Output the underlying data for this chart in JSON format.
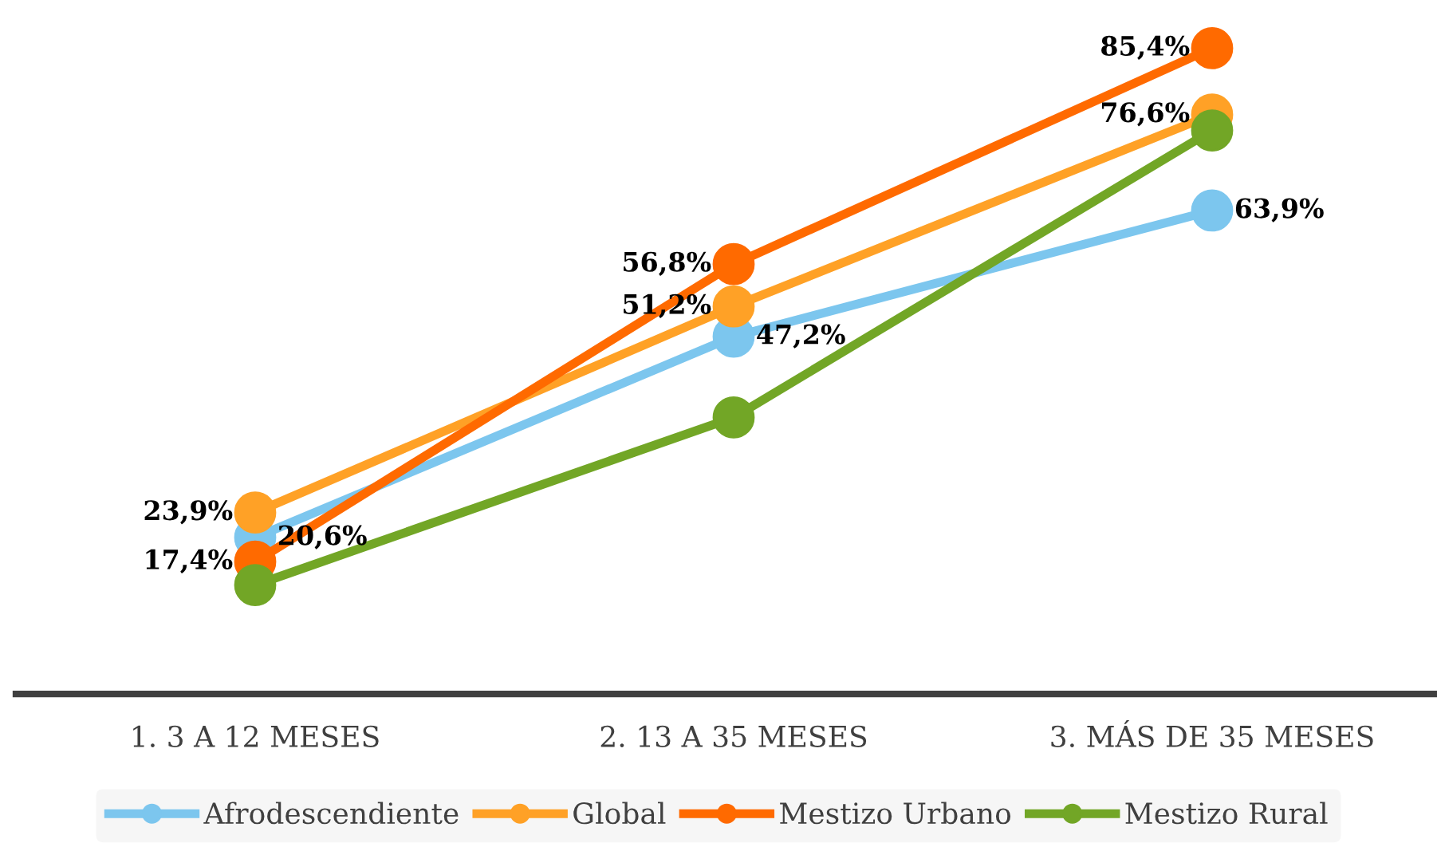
{
  "chart_data": {
    "type": "line",
    "categories": [
      "1. 3 A 12 MESES",
      "2. 13 A 35 MESES",
      "3. MÁS DE 35 MESES"
    ],
    "series": [
      {
        "name": "Afrodescendiente",
        "color": "#7cc6ee",
        "values": [
          20.6,
          47.2,
          63.9
        ],
        "value_labels": [
          "20,6%",
          "47,2%",
          "63,9%"
        ]
      },
      {
        "name": "Global",
        "color": "#ffa126",
        "values": [
          23.9,
          51.2,
          76.6
        ],
        "value_labels": [
          "23,9%",
          "51,2%",
          "76,6%"
        ]
      },
      {
        "name": "Mestizo Urbano",
        "color": "#ff6a00",
        "values": [
          17.4,
          56.8,
          85.4
        ],
        "value_labels": [
          "17,4%",
          "56,8%",
          "85,4%"
        ]
      },
      {
        "name": "Mestizo Rural",
        "color": "#72a626",
        "values": [
          14.3,
          36.5,
          74.5
        ],
        "value_labels": [
          null,
          null,
          null
        ]
      }
    ],
    "tick_labels": "x",
    "grid": false,
    "legend": "bottom",
    "marker": "circle",
    "line_style": "solid"
  }
}
